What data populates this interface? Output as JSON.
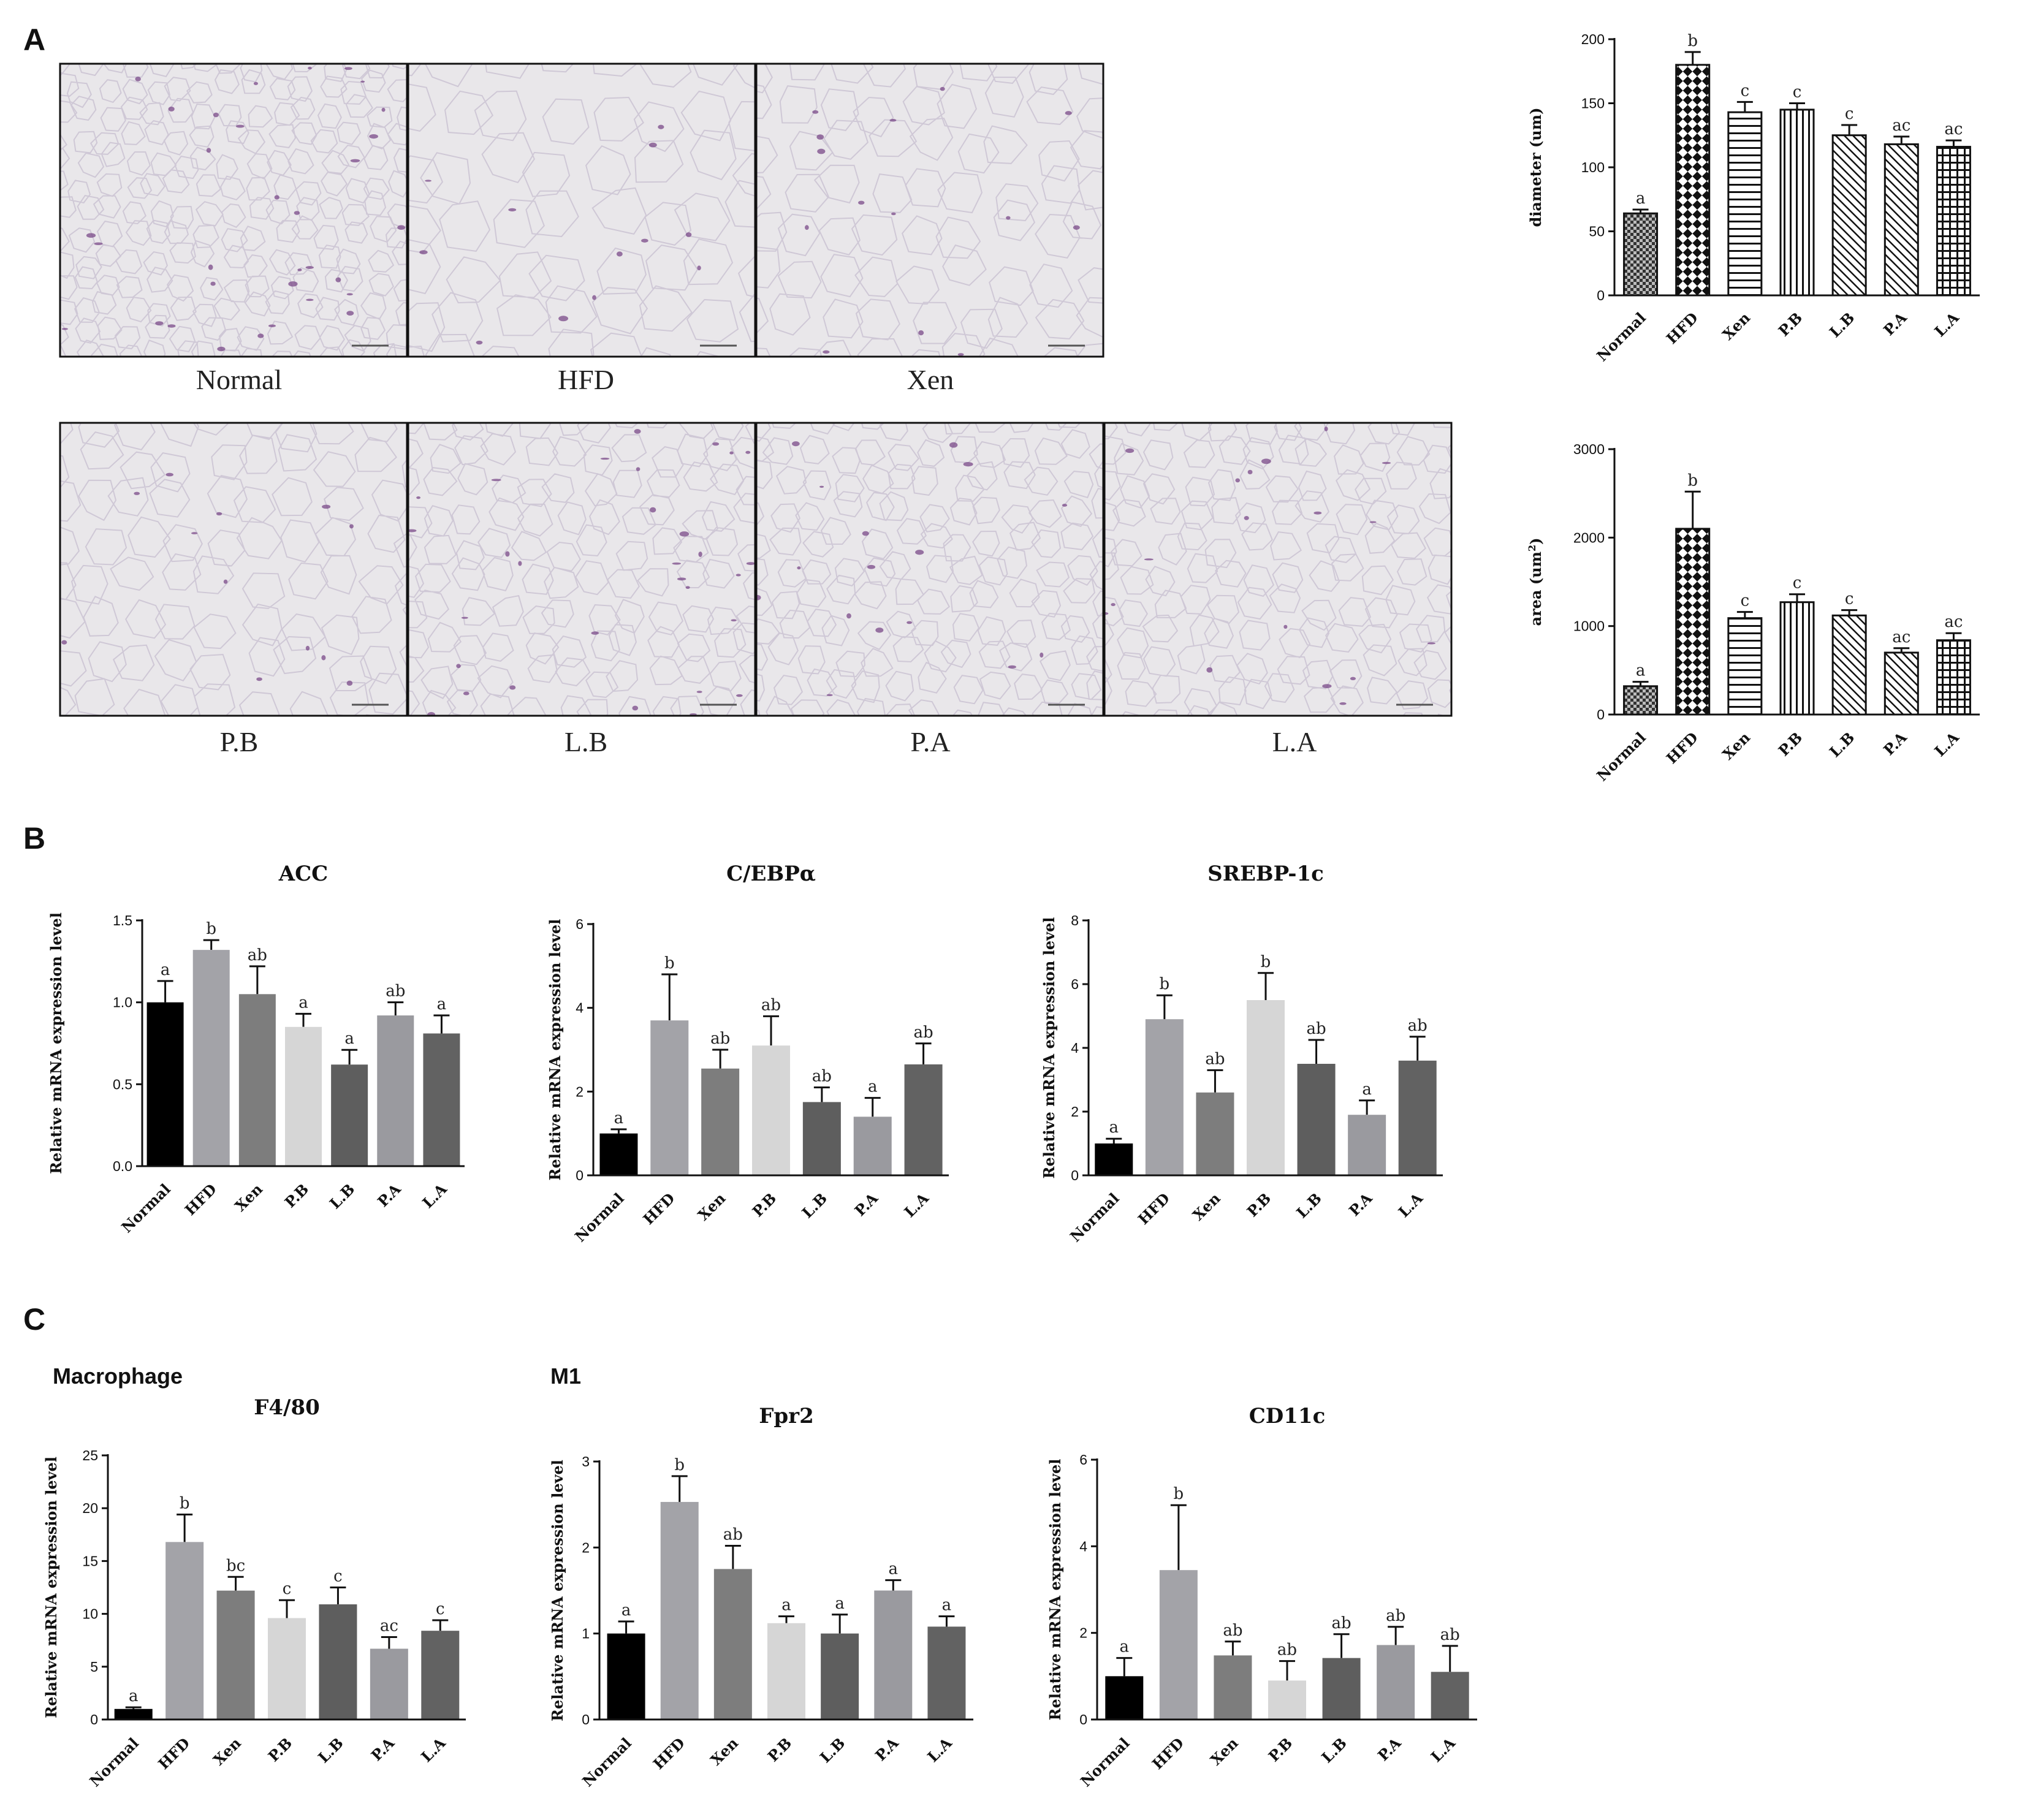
{
  "panels": {
    "A": "A",
    "B": "B",
    "C": "C"
  },
  "group_labels": {
    "macrophage": "Macrophage",
    "m1": "M1"
  },
  "micrographs": [
    {
      "label": "Normal",
      "density": 1.55,
      "stain": 0.8
    },
    {
      "label": "HFD",
      "density": 0.75,
      "stain": 0.3
    },
    {
      "label": "Xen",
      "density": 0.9,
      "stain": 0.35
    },
    {
      "label": "P.B",
      "density": 0.95,
      "stain": 0.3
    },
    {
      "label": "L.B",
      "density": 1.2,
      "stain": 0.75
    },
    {
      "label": "P.A",
      "density": 1.3,
      "stain": 0.4
    },
    {
      "label": "L.A",
      "density": 1.25,
      "stain": 0.45
    }
  ],
  "colors": {
    "Normal": "#000000",
    "HFD": "#a3a3a8",
    "Xen": "#7d7d7d",
    "P.B": "#d6d6d6",
    "L.B": "#5e5e5e",
    "P.A": "#9a9a9f",
    "L.A": "#626262",
    "micrograph_bg": "#e9e7ea",
    "cell_wall": "#cfc8d6",
    "stain": "#7a4a88"
  },
  "chart_data": [
    {
      "id": "diameter",
      "type": "bar",
      "title": "",
      "ylabel": "diameter (um)",
      "ylabel_sup": "",
      "categories": [
        "Normal",
        "HFD",
        "Xen",
        "P.B",
        "L.B",
        "P.A",
        "L.A"
      ],
      "values": [
        64,
        180,
        143,
        145,
        125,
        118,
        116
      ],
      "errors": [
        3,
        10,
        8,
        5,
        8,
        6,
        5
      ],
      "significance": [
        "a",
        "b",
        "c",
        "c",
        "c",
        "ac",
        "ac"
      ],
      "yticks": [
        0,
        50,
        100,
        150,
        200
      ],
      "ylim": [
        0,
        200
      ],
      "patterns": [
        "checker",
        "checker_big",
        "hlines",
        "vlines",
        "diag",
        "diag",
        "grid"
      ]
    },
    {
      "id": "area",
      "type": "bar",
      "title": "",
      "ylabel": "area (um",
      "ylabel_sup": "2",
      "ylabel_tail": ")",
      "categories": [
        "Normal",
        "HFD",
        "Xen",
        "P.B",
        "L.B",
        "P.A",
        "L.A"
      ],
      "values": [
        320,
        2100,
        1090,
        1270,
        1120,
        700,
        840
      ],
      "errors": [
        50,
        420,
        70,
        90,
        60,
        50,
        80
      ],
      "significance": [
        "a",
        "b",
        "c",
        "c",
        "c",
        "ac",
        "ac"
      ],
      "yticks": [
        0,
        1000,
        2000,
        3000
      ],
      "ylim": [
        0,
        3000
      ],
      "patterns": [
        "checker",
        "checker_big",
        "hlines",
        "vlines",
        "diag",
        "diag",
        "grid"
      ]
    },
    {
      "id": "ACC",
      "type": "bar",
      "title": "ACC",
      "ylabel": "Relative mRNA expression level",
      "categories": [
        "Normal",
        "HFD",
        "Xen",
        "P.B",
        "L.B",
        "P.A",
        "L.A"
      ],
      "values": [
        1.0,
        1.32,
        1.05,
        0.85,
        0.62,
        0.92,
        0.81
      ],
      "errors": [
        0.13,
        0.06,
        0.17,
        0.08,
        0.09,
        0.08,
        0.11
      ],
      "significance": [
        "a",
        "b",
        "ab",
        "a",
        "a",
        "ab",
        "a"
      ],
      "yticks": [
        "0.0",
        "0.5",
        "1.0",
        "1.5"
      ],
      "ylim": [
        0,
        1.5
      ]
    },
    {
      "id": "CEBPa",
      "type": "bar",
      "title": "C/EBPα",
      "ylabel": "Relative mRNA expression level",
      "categories": [
        "Normal",
        "HFD",
        "Xen",
        "P.B",
        "L.B",
        "P.A",
        "L.A"
      ],
      "values": [
        1.0,
        3.7,
        2.55,
        3.1,
        1.75,
        1.4,
        2.65
      ],
      "errors": [
        0.1,
        1.1,
        0.45,
        0.7,
        0.35,
        0.45,
        0.5
      ],
      "significance": [
        "a",
        "b",
        "ab",
        "ab",
        "ab",
        "a",
        "ab"
      ],
      "yticks": [
        0,
        2,
        4,
        6
      ],
      "ylim": [
        0,
        6
      ]
    },
    {
      "id": "SREBP1c",
      "type": "bar",
      "title": "SREBP-1c",
      "ylabel": "Relative mRNA expression level",
      "categories": [
        "Normal",
        "HFD",
        "Xen",
        "P.B",
        "L.B",
        "P.A",
        "L.A"
      ],
      "values": [
        1.0,
        4.9,
        2.6,
        5.5,
        3.5,
        1.9,
        3.6
      ],
      "errors": [
        0.15,
        0.75,
        0.7,
        0.85,
        0.75,
        0.45,
        0.75
      ],
      "significance": [
        "a",
        "b",
        "ab",
        "b",
        "ab",
        "a",
        "ab"
      ],
      "yticks": [
        0,
        2,
        4,
        6,
        8
      ],
      "ylim": [
        0,
        8
      ]
    },
    {
      "id": "F480",
      "type": "bar",
      "title": "F4/80",
      "ylabel": "Relative mRNA expression level",
      "categories": [
        "Normal",
        "HFD",
        "Xen",
        "P.B",
        "L.B",
        "P.A",
        "L.A"
      ],
      "values": [
        1.0,
        16.8,
        12.2,
        9.6,
        10.9,
        6.7,
        8.4
      ],
      "errors": [
        0.15,
        2.6,
        1.3,
        1.7,
        1.6,
        1.1,
        1.0
      ],
      "significance": [
        "a",
        "b",
        "bc",
        "c",
        "c",
        "ac",
        "c"
      ],
      "yticks": [
        0,
        5,
        10,
        15,
        20,
        25
      ],
      "ylim": [
        0,
        25
      ]
    },
    {
      "id": "Fpr2",
      "type": "bar",
      "title": "Fpr2",
      "ylabel": "Relative mRNA expression level",
      "categories": [
        "Normal",
        "HFD",
        "Xen",
        "P.B",
        "L.B",
        "P.A",
        "L.A"
      ],
      "values": [
        1.0,
        2.53,
        1.75,
        1.12,
        1.0,
        1.5,
        1.08
      ],
      "errors": [
        0.14,
        0.3,
        0.27,
        0.08,
        0.22,
        0.12,
        0.12
      ],
      "significance": [
        "a",
        "b",
        "ab",
        "a",
        "a",
        "a",
        "a"
      ],
      "yticks": [
        0,
        1,
        2,
        3
      ],
      "ylim": [
        0,
        3
      ]
    },
    {
      "id": "CD11c",
      "type": "bar",
      "title": "CD11c",
      "ylabel": "Relative mRNA expression level",
      "categories": [
        "Normal",
        "HFD",
        "Xen",
        "P.B",
        "L.B",
        "P.A",
        "L.A"
      ],
      "values": [
        1.0,
        3.45,
        1.48,
        0.9,
        1.42,
        1.72,
        1.1
      ],
      "errors": [
        0.42,
        1.5,
        0.32,
        0.45,
        0.55,
        0.42,
        0.6
      ],
      "significance": [
        "a",
        "b",
        "ab",
        "ab",
        "ab",
        "ab",
        "ab"
      ],
      "yticks": [
        0,
        2,
        4,
        6
      ],
      "ylim": [
        0,
        6
      ]
    }
  ]
}
